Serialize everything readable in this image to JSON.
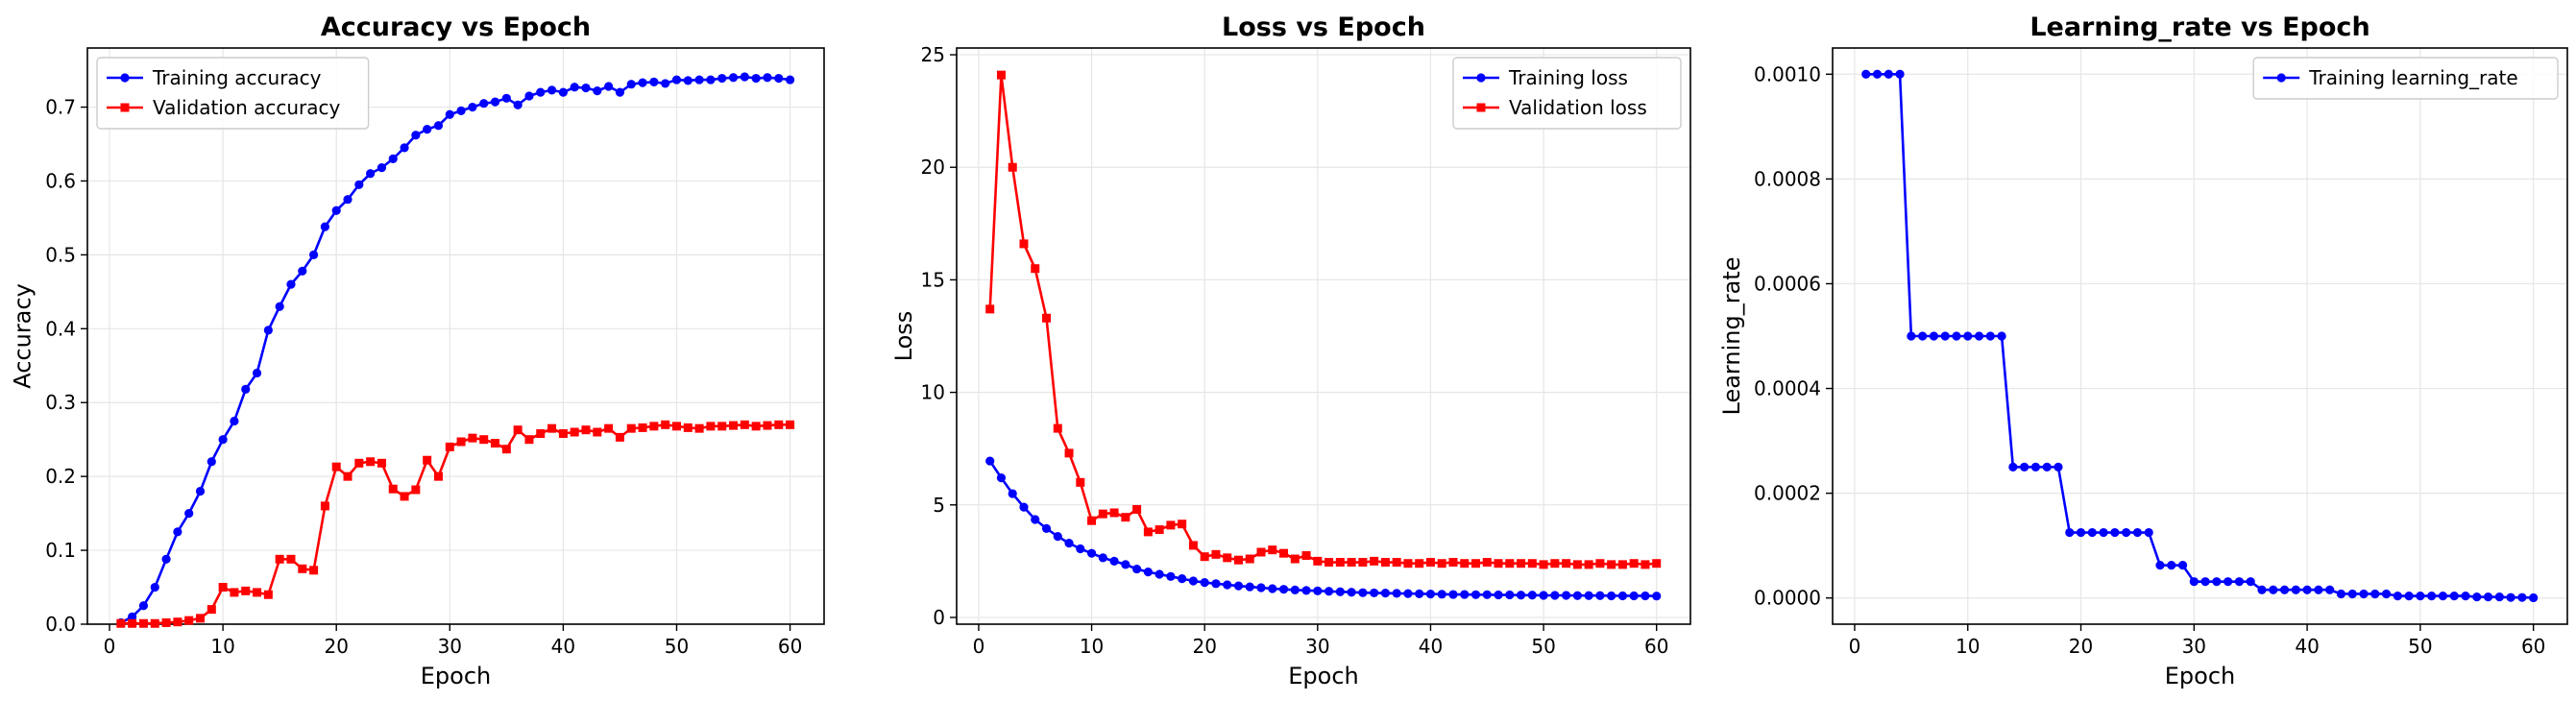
{
  "chart_data": [
    {
      "type": "line",
      "title": "Accuracy vs Epoch",
      "xlabel": "Epoch",
      "ylabel": "Accuracy",
      "xlim": [
        -1.95,
        63.0
      ],
      "ylim": [
        0,
        0.78
      ],
      "xticks": [
        0,
        10,
        20,
        30,
        40,
        50,
        60
      ],
      "yticks": [
        0.0,
        0.1,
        0.2,
        0.3,
        0.4,
        0.5,
        0.6,
        0.7
      ],
      "ytick_labels": [
        "0.0",
        "0.1",
        "0.2",
        "0.3",
        "0.4",
        "0.5",
        "0.6",
        "0.7"
      ],
      "grid": true,
      "legend_position": "upper-left",
      "series": [
        {
          "name": "Training accuracy",
          "color": "#0000ff",
          "marker": "circle",
          "x": [
            1,
            2,
            3,
            4,
            5,
            6,
            7,
            8,
            9,
            10,
            11,
            12,
            13,
            14,
            15,
            16,
            17,
            18,
            19,
            20,
            21,
            22,
            23,
            24,
            25,
            26,
            27,
            28,
            29,
            30,
            31,
            32,
            33,
            34,
            35,
            36,
            37,
            38,
            39,
            40,
            41,
            42,
            43,
            44,
            45,
            46,
            47,
            48,
            49,
            50,
            51,
            52,
            53,
            54,
            55,
            56,
            57,
            58,
            59,
            60
          ],
          "y": [
            0.002,
            0.01,
            0.025,
            0.05,
            0.088,
            0.125,
            0.15,
            0.18,
            0.22,
            0.25,
            0.275,
            0.318,
            0.34,
            0.398,
            0.43,
            0.46,
            0.478,
            0.5,
            0.538,
            0.56,
            0.575,
            0.595,
            0.61,
            0.618,
            0.63,
            0.645,
            0.662,
            0.67,
            0.675,
            0.69,
            0.695,
            0.7,
            0.705,
            0.707,
            0.712,
            0.703,
            0.715,
            0.72,
            0.723,
            0.72,
            0.727,
            0.726,
            0.722,
            0.728,
            0.72,
            0.731,
            0.733,
            0.734,
            0.732,
            0.737,
            0.736,
            0.737,
            0.737,
            0.739,
            0.74,
            0.741,
            0.739,
            0.74,
            0.739,
            0.737
          ]
        },
        {
          "name": "Validation accuracy",
          "color": "#ff0000",
          "marker": "square",
          "x": [
            1,
            2,
            3,
            4,
            5,
            6,
            7,
            8,
            9,
            10,
            11,
            12,
            13,
            14,
            15,
            16,
            17,
            18,
            19,
            20,
            21,
            22,
            23,
            24,
            25,
            26,
            27,
            28,
            29,
            30,
            31,
            32,
            33,
            34,
            35,
            36,
            37,
            38,
            39,
            40,
            41,
            42,
            43,
            44,
            45,
            46,
            47,
            48,
            49,
            50,
            51,
            52,
            53,
            54,
            55,
            56,
            57,
            58,
            59,
            60
          ],
          "y": [
            0.001,
            0.001,
            0.001,
            0.001,
            0.002,
            0.003,
            0.005,
            0.008,
            0.02,
            0.05,
            0.043,
            0.045,
            0.043,
            0.04,
            0.088,
            0.088,
            0.075,
            0.073,
            0.16,
            0.213,
            0.2,
            0.218,
            0.22,
            0.218,
            0.183,
            0.173,
            0.182,
            0.222,
            0.2,
            0.24,
            0.247,
            0.252,
            0.25,
            0.245,
            0.237,
            0.263,
            0.25,
            0.258,
            0.265,
            0.258,
            0.26,
            0.263,
            0.26,
            0.265,
            0.253,
            0.265,
            0.266,
            0.268,
            0.27,
            0.268,
            0.266,
            0.265,
            0.268,
            0.268,
            0.269,
            0.27,
            0.268,
            0.269,
            0.27,
            0.27
          ]
        }
      ]
    },
    {
      "type": "line",
      "title": "Loss vs Epoch",
      "xlabel": "Epoch",
      "ylabel": "Loss",
      "xlim": [
        -1.95,
        63.0
      ],
      "ylim": [
        -0.3,
        25.3
      ],
      "xticks": [
        0,
        10,
        20,
        30,
        40,
        50,
        60
      ],
      "yticks": [
        0,
        5,
        10,
        15,
        20,
        25
      ],
      "ytick_labels": [
        "0",
        "5",
        "10",
        "15",
        "20",
        "25"
      ],
      "grid": true,
      "legend_position": "upper-right",
      "series": [
        {
          "name": "Training loss",
          "color": "#0000ff",
          "marker": "circle",
          "x": [
            1,
            2,
            3,
            4,
            5,
            6,
            7,
            8,
            9,
            10,
            11,
            12,
            13,
            14,
            15,
            16,
            17,
            18,
            19,
            20,
            21,
            22,
            23,
            24,
            25,
            26,
            27,
            28,
            29,
            30,
            31,
            32,
            33,
            34,
            35,
            36,
            37,
            38,
            39,
            40,
            41,
            42,
            43,
            44,
            45,
            46,
            47,
            48,
            49,
            50,
            51,
            52,
            53,
            54,
            55,
            56,
            57,
            58,
            59,
            60
          ],
          "y": [
            6.95,
            6.2,
            5.5,
            4.9,
            4.35,
            3.95,
            3.6,
            3.3,
            3.05,
            2.85,
            2.65,
            2.5,
            2.35,
            2.15,
            2.02,
            1.92,
            1.82,
            1.72,
            1.62,
            1.55,
            1.5,
            1.45,
            1.4,
            1.36,
            1.32,
            1.28,
            1.25,
            1.22,
            1.2,
            1.18,
            1.16,
            1.14,
            1.12,
            1.1,
            1.09,
            1.08,
            1.07,
            1.06,
            1.05,
            1.04,
            1.03,
            1.02,
            1.02,
            1.01,
            1.01,
            1.0,
            1.0,
            0.99,
            0.99,
            0.98,
            0.98,
            0.98,
            0.97,
            0.97,
            0.97,
            0.96,
            0.96,
            0.96,
            0.96,
            0.95
          ]
        },
        {
          "name": "Validation loss",
          "color": "#ff0000",
          "marker": "square",
          "x": [
            1,
            2,
            3,
            4,
            5,
            6,
            7,
            8,
            9,
            10,
            11,
            12,
            13,
            14,
            15,
            16,
            17,
            18,
            19,
            20,
            21,
            22,
            23,
            24,
            25,
            26,
            27,
            28,
            29,
            30,
            31,
            32,
            33,
            34,
            35,
            36,
            37,
            38,
            39,
            40,
            41,
            42,
            43,
            44,
            45,
            46,
            47,
            48,
            49,
            50,
            51,
            52,
            53,
            54,
            55,
            56,
            57,
            58,
            59,
            60
          ],
          "y": [
            13.7,
            24.1,
            20.0,
            16.6,
            15.5,
            13.3,
            8.4,
            7.3,
            6.0,
            4.3,
            4.6,
            4.65,
            4.45,
            4.8,
            3.8,
            3.9,
            4.1,
            4.15,
            3.2,
            2.7,
            2.8,
            2.65,
            2.55,
            2.6,
            2.9,
            3.0,
            2.85,
            2.6,
            2.75,
            2.5,
            2.45,
            2.45,
            2.45,
            2.45,
            2.5,
            2.45,
            2.45,
            2.4,
            2.4,
            2.45,
            2.4,
            2.45,
            2.4,
            2.4,
            2.45,
            2.4,
            2.4,
            2.4,
            2.4,
            2.35,
            2.4,
            2.4,
            2.35,
            2.35,
            2.4,
            2.35,
            2.35,
            2.4,
            2.35,
            2.4
          ]
        }
      ]
    },
    {
      "type": "line",
      "title": "Learning_rate vs Epoch",
      "xlabel": "Epoch",
      "ylabel": "Learning_rate",
      "xlim": [
        -1.95,
        63.0
      ],
      "ylim": [
        -5e-05,
        0.00105
      ],
      "xticks": [
        0,
        10,
        20,
        30,
        40,
        50,
        60
      ],
      "yticks": [
        0.0,
        0.0002,
        0.0004,
        0.0006,
        0.0008,
        0.001
      ],
      "ytick_labels": [
        "0.0000",
        "0.0002",
        "0.0004",
        "0.0006",
        "0.0008",
        "0.0010"
      ],
      "grid": true,
      "legend_position": "upper-right",
      "series": [
        {
          "name": "Training learning_rate",
          "color": "#0000ff",
          "marker": "circle",
          "x": [
            1,
            2,
            3,
            4,
            5,
            6,
            7,
            8,
            9,
            10,
            11,
            12,
            13,
            14,
            15,
            16,
            17,
            18,
            19,
            20,
            21,
            22,
            23,
            24,
            25,
            26,
            27,
            28,
            29,
            30,
            31,
            32,
            33,
            34,
            35,
            36,
            37,
            38,
            39,
            40,
            41,
            42,
            43,
            44,
            45,
            46,
            47,
            48,
            49,
            50,
            51,
            52,
            53,
            54,
            55,
            56,
            57,
            58,
            59,
            60
          ],
          "y": [
            0.001,
            0.001,
            0.001,
            0.001,
            0.0005,
            0.0005,
            0.0005,
            0.0005,
            0.0005,
            0.0005,
            0.0005,
            0.0005,
            0.0005,
            0.00025,
            0.00025,
            0.00025,
            0.00025,
            0.00025,
            0.000125,
            0.000125,
            0.000125,
            0.000125,
            0.000125,
            0.000125,
            0.000125,
            0.000125,
            6.25e-05,
            6.25e-05,
            6.25e-05,
            3.125e-05,
            3.125e-05,
            3.125e-05,
            3.125e-05,
            3.125e-05,
            3.125e-05,
            1.56e-05,
            1.56e-05,
            1.56e-05,
            1.56e-05,
            1.56e-05,
            1.56e-05,
            1.56e-05,
            7.8e-06,
            7.8e-06,
            7.8e-06,
            7.8e-06,
            7.8e-06,
            3.9e-06,
            3.9e-06,
            3.9e-06,
            3.9e-06,
            3.9e-06,
            3.9e-06,
            3.9e-06,
            2e-06,
            2e-06,
            2e-06,
            1e-06,
            1e-06,
            5e-07
          ]
        }
      ]
    }
  ]
}
